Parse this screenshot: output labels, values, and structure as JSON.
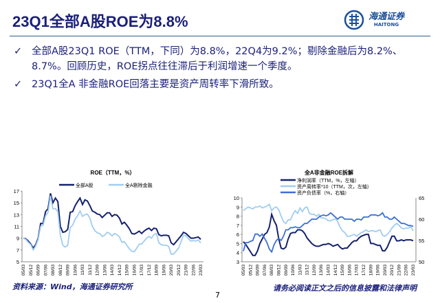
{
  "slide": {
    "title": "23Q1全部A股ROE为8.8%",
    "logo": {
      "cn": "海通证券",
      "en": "HAITONG"
    },
    "bullets": [
      "全部A股23Q1 ROE（TTM，下同）为8.8%，22Q4为9.2%；剔除金融后为8.2%、8.7%。回顾历史，ROE拐点往往滞后于利润增速一个季度。",
      "23Q1全A 非金融ROE回落主要是资产周转率下滑所致。"
    ],
    "bullet_icon": "check-icon",
    "source": "资料来源：Wind，海通证券研究所",
    "page_number": "7",
    "disclaimer": "请务必阅读正文之后的信息披露和法律声明",
    "colors": {
      "title": "#1a1f7a",
      "dark_series": "#14206e",
      "light_series": "#9fcdf0",
      "mid_series": "#3a6fd8"
    }
  },
  "chart_data": [
    {
      "type": "line",
      "title": "ROE（TTM，%）",
      "ylim": [
        5,
        17
      ],
      "yticks": [
        5,
        7,
        9,
        11,
        13,
        15,
        17
      ],
      "legend": "top",
      "grid": false,
      "xticks": [
        "05/03",
        "05/12",
        "06/09",
        "07/06",
        "08/03",
        "08/12",
        "09/09",
        "10/06",
        "11/03",
        "11/12",
        "12/09",
        "13/06",
        "14/03",
        "14/12",
        "15/09",
        "16/06",
        "17/03",
        "17/12",
        "18/09",
        "19/06",
        "20/03",
        "20/12",
        "21/09",
        "22/06",
        "23/03"
      ],
      "x_frequency": "quarterly",
      "x_start": "05/03",
      "x_end": "23/03",
      "series": [
        {
          "name": "全部A股",
          "color": "#14206e",
          "values": [
            9.0,
            8.9,
            8.5,
            8.0,
            7.3,
            7.9,
            9.0,
            11.5,
            11.5,
            13.5,
            14.0,
            16.6,
            15.0,
            15.8,
            15.2,
            11.0,
            10.0,
            10.1,
            10.5,
            13.4,
            13.5,
            14.5,
            15.2,
            15.8,
            14.7,
            15.5,
            15.3,
            14.5,
            13.6,
            13.4,
            13.1,
            13.0,
            12.5,
            12.9,
            13.3,
            13.3,
            12.7,
            13.0,
            12.9,
            12.4,
            11.4,
            11.7,
            11.2,
            10.6,
            9.8,
            9.7,
            9.9,
            10.2,
            9.8,
            10.2,
            10.5,
            10.7,
            10.3,
            10.7,
            10.6,
            9.6,
            9.4,
            9.5,
            9.5,
            9.4,
            8.2,
            7.9,
            8.4,
            8.9,
            9.4,
            10.0,
            9.8,
            9.4,
            9.0,
            9.0,
            9.1,
            9.2,
            8.8
          ]
        },
        {
          "name": "全A剔除金融",
          "color": "#9fcdf0",
          "values": [
            9.0,
            8.8,
            8.3,
            7.9,
            7.0,
            7.7,
            8.8,
            11.0,
            11.2,
            12.8,
            13.4,
            16.2,
            14.0,
            14.0,
            13.5,
            9.5,
            7.8,
            7.5,
            7.8,
            10.8,
            11.2,
            12.2,
            12.8,
            13.6,
            12.7,
            13.0,
            13.1,
            12.4,
            11.0,
            10.3,
            9.9,
            9.8,
            9.3,
            9.5,
            10.0,
            9.8,
            9.4,
            9.8,
            9.6,
            9.2,
            8.3,
            8.4,
            7.8,
            7.2,
            6.8,
            6.7,
            7.3,
            8.0,
            8.0,
            8.5,
            9.0,
            9.3,
            9.0,
            9.6,
            9.8,
            8.2,
            7.9,
            7.8,
            7.8,
            7.6,
            6.3,
            6.3,
            6.8,
            7.3,
            8.4,
            9.5,
            9.4,
            8.9,
            8.5,
            8.6,
            8.5,
            8.7,
            8.2
          ]
        }
      ]
    },
    {
      "type": "line",
      "title": "全A非金融ROE拆解",
      "ylim": [
        3,
        10
      ],
      "yticks": [
        3,
        4,
        5,
        6,
        7,
        8,
        9,
        10
      ],
      "y2lim": [
        50,
        65
      ],
      "y2ticks": [
        50,
        55,
        60,
        65
      ],
      "legend": "top",
      "grid": false,
      "xticks": [
        "05/03",
        "05/12",
        "06/09",
        "07/06",
        "08/03",
        "08/12",
        "09/09",
        "10/06",
        "11/03",
        "11/12",
        "12/09",
        "13/06",
        "14/03",
        "14/12",
        "15/09",
        "16/06",
        "17/03",
        "17/12",
        "18/09",
        "19/06",
        "20/03",
        "20/12",
        "21/09",
        "22/06",
        "23/03"
      ],
      "x_frequency": "quarterly",
      "x_start": "05/03",
      "x_end": "23/03",
      "series": [
        {
          "name": "净利润率（TTM，%，左轴）",
          "axis": "left",
          "color": "#14206e",
          "values": [
            5.2,
            4.9,
            4.5,
            4.1,
            3.7,
            3.7,
            4.2,
            5.0,
            5.5,
            6.0,
            6.2,
            6.8,
            8.2,
            7.5,
            7.0,
            5.5,
            4.5,
            4.4,
            4.6,
            5.5,
            6.1,
            6.2,
            6.2,
            6.5,
            6.5,
            6.4,
            6.1,
            5.6,
            5.3,
            5.0,
            4.8,
            4.7,
            4.7,
            4.8,
            4.9,
            4.9,
            5.0,
            4.9,
            4.7,
            4.8,
            4.9,
            4.6,
            4.4,
            4.5,
            4.5,
            4.8,
            5.1,
            5.3,
            5.3,
            5.6,
            5.8,
            5.9,
            6.0,
            6.0,
            5.0,
            5.0,
            4.9,
            4.8,
            4.8,
            4.2,
            4.2,
            4.6,
            5.2,
            5.8,
            5.8,
            5.3,
            5.3,
            5.4,
            5.3,
            5.4,
            5.4,
            5.4,
            5.3
          ]
        },
        {
          "name": "资产周转率*10（TTM，次，左轴）",
          "axis": "left",
          "color": "#9fcdf0",
          "values": [
            8.6,
            8.8,
            9.0,
            8.9,
            8.8,
            9.0,
            9.0,
            9.1,
            8.9,
            9.0,
            9.1,
            9.3,
            8.6,
            8.9,
            9.0,
            8.7,
            8.0,
            7.4,
            7.2,
            7.6,
            7.6,
            8.2,
            8.6,
            8.3,
            8.9,
            8.5,
            8.9,
            9.0,
            8.3,
            8.2,
            8.2,
            8.0,
            8.2,
            7.8,
            7.8,
            7.7,
            7.5,
            7.5,
            7.6,
            7.7,
            7.4,
            6.8,
            6.4,
            6.2,
            5.8,
            5.8,
            5.9,
            6.0,
            5.8,
            6.0,
            6.2,
            6.3,
            6.5,
            6.3,
            6.4,
            6.4,
            6.3,
            6.4,
            6.5,
            5.9,
            5.8,
            6.0,
            6.3,
            6.7,
            7.0,
            7.2,
            7.0,
            6.7,
            6.6,
            6.7,
            6.7,
            6.8,
            6.4
          ]
        },
        {
          "name": "资产负债率（%，右轴）",
          "axis": "right",
          "color": "#3a6fd8",
          "values": [
            52.5,
            54.5,
            54.5,
            54.8,
            55.0,
            56.5,
            56.5,
            56.0,
            56.5,
            55.5,
            54.5,
            53.0,
            52.3,
            54.0,
            55.0,
            55.5,
            55.0,
            56.0,
            57.5,
            57.5,
            58.0,
            58.0,
            58.2,
            58.0,
            58.0,
            58.5,
            59.0,
            59.0,
            59.5,
            60.0,
            60.0,
            60.0,
            60.5,
            60.8,
            61.0,
            60.8,
            61.0,
            61.5,
            61.0,
            60.5,
            60.0,
            60.5,
            60.5,
            60.0,
            60.0,
            60.0,
            60.0,
            59.5,
            60.0,
            60.0,
            59.8,
            60.5,
            60.5,
            60.5,
            61.0,
            61.0,
            61.0,
            60.8,
            61.0,
            61.5,
            60.5,
            60.5,
            60.0,
            60.0,
            60.5,
            60.0,
            59.5,
            59.0,
            59.0,
            58.8,
            58.5,
            58.5,
            58.3
          ]
        }
      ]
    }
  ]
}
